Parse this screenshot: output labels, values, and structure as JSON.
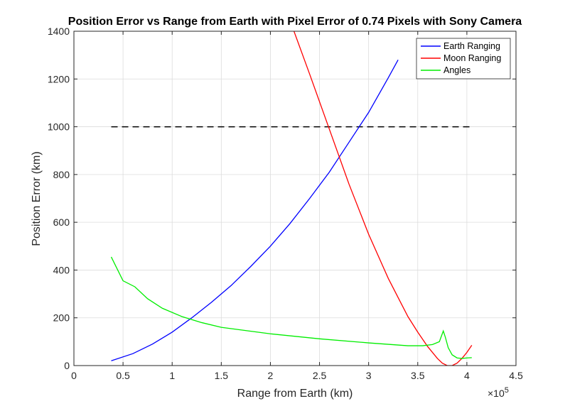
{
  "chart_data": {
    "type": "line",
    "title": "Position Error vs Range from Earth with Pixel Error of 0.74 Pixels with Sony Camera",
    "xlabel": "Range from Earth (km)",
    "ylabel": "Position Error (km)",
    "x_exponent_label": "×10",
    "x_exponent_power": "5",
    "x_scale": 100000,
    "xlim": [
      0,
      450000
    ],
    "ylim": [
      0,
      1400
    ],
    "xticks": [
      0,
      50000,
      100000,
      150000,
      200000,
      250000,
      300000,
      350000,
      400000,
      450000
    ],
    "xtick_labels": [
      "0",
      "0.5",
      "1",
      "1.5",
      "2",
      "2.5",
      "3",
      "3.5",
      "4",
      "4.5"
    ],
    "yticks": [
      0,
      200,
      400,
      600,
      800,
      1000,
      1200,
      1400
    ],
    "ytick_labels": [
      "0",
      "200",
      "400",
      "600",
      "800",
      "1000",
      "1200",
      "1400"
    ],
    "grid": true,
    "legend_position": "top-right",
    "series": [
      {
        "name": "Earth Ranging",
        "color": "#0000ff",
        "x": [
          38000,
          60000,
          80000,
          100000,
          120000,
          140000,
          160000,
          180000,
          200000,
          220000,
          240000,
          260000,
          280000,
          300000,
          320000,
          330000
        ],
        "y": [
          20,
          50,
          90,
          140,
          200,
          265,
          335,
          415,
          500,
          595,
          700,
          810,
          935,
          1060,
          1205,
          1280
        ]
      },
      {
        "name": "Moon Ranging",
        "color": "#ff0000",
        "x": [
          224000,
          240000,
          260000,
          280000,
          300000,
          320000,
          340000,
          350000,
          360000,
          370000,
          375000,
          380000,
          385000,
          390000,
          395000,
          400000,
          405000
        ],
        "y": [
          1400,
          1220,
          990,
          760,
          550,
          365,
          205,
          140,
          80,
          30,
          10,
          0,
          0,
          10,
          30,
          55,
          85
        ]
      },
      {
        "name": "Angles",
        "color": "#00ee00",
        "x": [
          38000,
          50000,
          62000,
          75000,
          90000,
          110000,
          130000,
          150000,
          200000,
          250000,
          300000,
          340000,
          355000,
          365000,
          372000,
          376000,
          378000,
          381000,
          385000,
          390000,
          395000,
          400000,
          405000
        ],
        "y": [
          455,
          355,
          330,
          280,
          240,
          205,
          180,
          160,
          133,
          112,
          95,
          83,
          83,
          88,
          100,
          145,
          120,
          75,
          45,
          32,
          30,
          32,
          33
        ]
      }
    ],
    "reference_line": {
      "x": [
        38000,
        405000
      ],
      "y": [
        1000,
        1000
      ],
      "color": "#000000",
      "style": "dashed"
    }
  }
}
